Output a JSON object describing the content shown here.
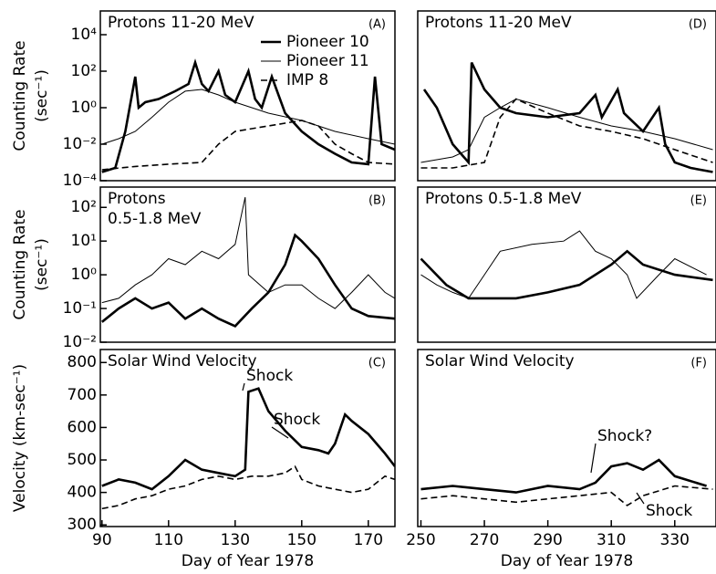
{
  "chart_data": [
    {
      "type": "line",
      "panel": "(A)",
      "title": "Protons 11-20 MeV",
      "log_y": true,
      "legend": "upper center",
      "ylabel": [
        "Counting Rate",
        "(sec⁻¹)"
      ],
      "xlim": [
        89.5,
        178
      ],
      "ylim": [
        0.0001,
        200000
      ],
      "yticks": [
        {
          "value": 0.0001,
          "label": "10⁻⁴"
        },
        {
          "value": 0.01,
          "label": "10⁻²"
        },
        {
          "value": 1,
          "label": "10⁰"
        },
        {
          "value": 100,
          "label": "10²"
        },
        {
          "value": 10000,
          "label": "10⁴"
        }
      ],
      "series": [
        {
          "name": "Pioneer 10",
          "color": "#000000",
          "x": [
            90,
            94,
            97,
            100,
            101,
            103,
            107,
            112,
            116,
            118,
            120,
            122,
            125,
            127,
            130,
            134,
            136,
            138,
            141,
            145,
            150,
            155,
            160,
            165,
            170,
            172,
            174,
            178
          ],
          "values": [
            0.0003,
            0.0005,
            0.05,
            50,
            1,
            2,
            3,
            8,
            20,
            300,
            20,
            8,
            100,
            5,
            2,
            100,
            3,
            1,
            50,
            0.5,
            0.05,
            0.01,
            0.003,
            0.001,
            0.0008,
            50,
            0.01,
            0.005
          ]
        },
        {
          "name": "Pioneer 11",
          "color": "#000000",
          "x": [
            90,
            95,
            100,
            105,
            110,
            115,
            120,
            125,
            130,
            135,
            140,
            150,
            160,
            170,
            178
          ],
          "values": [
            0.01,
            0.02,
            0.05,
            0.3,
            2,
            8,
            10,
            5,
            2,
            1,
            0.5,
            0.2,
            0.05,
            0.02,
            0.01
          ]
        },
        {
          "name": "IMP 8",
          "color": "#000000",
          "x": [
            90,
            100,
            110,
            120,
            125,
            130,
            140,
            150,
            155,
            160,
            165,
            170,
            178
          ],
          "values": [
            0.0004,
            0.0006,
            0.0008,
            0.001,
            0.01,
            0.05,
            0.1,
            0.2,
            0.1,
            0.01,
            0.003,
            0.001,
            0.0008
          ]
        }
      ]
    },
    {
      "type": "line",
      "panel": "(B)",
      "title": "Protons",
      "subtitle": "0.5-1.8 MeV",
      "log_y": true,
      "ylabel": [
        "Counting Rate",
        "(sec⁻¹)"
      ],
      "xlim": [
        89.5,
        178
      ],
      "ylim": [
        0.01,
        400
      ],
      "yticks": [
        {
          "value": 0.01,
          "label": "10⁻²"
        },
        {
          "value": 0.1,
          "label": "10⁻¹"
        },
        {
          "value": 1,
          "label": "10⁰"
        },
        {
          "value": 10,
          "label": "10¹"
        },
        {
          "value": 100,
          "label": "10²"
        }
      ],
      "series": [
        {
          "name": "Pioneer 10",
          "color": "#000000",
          "x": [
            90,
            95,
            100,
            105,
            110,
            115,
            120,
            125,
            130,
            135,
            140,
            145,
            148,
            150,
            155,
            160,
            165,
            170,
            178
          ],
          "values": [
            0.04,
            0.1,
            0.2,
            0.1,
            0.15,
            0.05,
            0.1,
            0.05,
            0.03,
            0.1,
            0.3,
            2,
            15,
            10,
            3,
            0.5,
            0.1,
            0.06,
            0.05
          ]
        },
        {
          "name": "Pioneer 11",
          "color": "#000000",
          "x": [
            90,
            95,
            100,
            105,
            110,
            115,
            120,
            125,
            130,
            133,
            134,
            140,
            145,
            150,
            155,
            160,
            165,
            170,
            175,
            178
          ],
          "values": [
            0.15,
            0.2,
            0.5,
            1,
            3,
            2,
            5,
            3,
            8,
            200,
            1,
            0.3,
            0.5,
            0.5,
            0.2,
            0.1,
            0.3,
            1,
            0.3,
            0.2
          ]
        }
      ]
    },
    {
      "type": "line",
      "panel": "(C)",
      "title": "Solar Wind Velocity",
      "log_y": false,
      "ylabel": [
        "Velocity (km-sec⁻¹)"
      ],
      "xlabel": "Day of Year 1978",
      "xlim": [
        89.5,
        178
      ],
      "ylim": [
        295,
        840
      ],
      "xticks": [
        90,
        110,
        130,
        150,
        170
      ],
      "yticks": [
        300,
        400,
        500,
        600,
        700,
        800
      ],
      "annotations": [
        "Shock",
        "Shock"
      ],
      "series": [
        {
          "name": "Pioneer 10",
          "color": "#000000",
          "x": [
            90,
            95,
            100,
            105,
            110,
            115,
            120,
            125,
            130,
            133,
            134,
            137,
            140,
            145,
            148,
            150,
            155,
            158,
            160,
            163,
            165,
            170,
            175,
            178
          ],
          "values": [
            420,
            440,
            430,
            410,
            450,
            500,
            470,
            460,
            450,
            470,
            710,
            720,
            650,
            590,
            560,
            540,
            530,
            520,
            550,
            640,
            620,
            580,
            520,
            480
          ]
        },
        {
          "name": "IMP 8",
          "color": "#000000",
          "x": [
            90,
            95,
            100,
            105,
            110,
            115,
            120,
            125,
            130,
            135,
            140,
            145,
            148,
            150,
            155,
            160,
            165,
            170,
            175,
            178
          ],
          "values": [
            350,
            360,
            380,
            390,
            410,
            420,
            440,
            450,
            440,
            450,
            450,
            460,
            480,
            440,
            420,
            410,
            400,
            410,
            450,
            440
          ]
        }
      ]
    },
    {
      "type": "line",
      "panel": "(D)",
      "title": "Protons 11-20 MeV",
      "log_y": true,
      "xlim": [
        249,
        343
      ],
      "ylim": [
        0.0001,
        200000
      ],
      "series": [
        {
          "name": "Pioneer 10",
          "color": "#000000",
          "x": [
            251,
            255,
            260,
            265,
            266,
            270,
            275,
            280,
            290,
            300,
            305,
            307,
            312,
            314,
            320,
            325,
            327,
            330,
            335,
            342
          ],
          "values": [
            10,
            1,
            0.01,
            0.001,
            300,
            10,
            1,
            0.5,
            0.3,
            0.5,
            5,
            0.3,
            10,
            0.5,
            0.05,
            1,
            0.01,
            0.001,
            0.0005,
            0.0003
          ]
        },
        {
          "name": "Pioneer 11",
          "color": "#000000",
          "x": [
            250,
            260,
            265,
            270,
            275,
            280,
            290,
            300,
            310,
            320,
            330,
            342
          ],
          "values": [
            0.001,
            0.002,
            0.005,
            0.3,
            1,
            3,
            1,
            0.3,
            0.1,
            0.05,
            0.02,
            0.005
          ]
        },
        {
          "name": "IMP 8",
          "color": "#000000",
          "x": [
            250,
            260,
            270,
            275,
            280,
            290,
            300,
            310,
            320,
            330,
            342
          ],
          "values": [
            0.0005,
            0.0005,
            0.001,
            0.3,
            3,
            0.5,
            0.1,
            0.05,
            0.02,
            0.005,
            0.001
          ]
        }
      ]
    },
    {
      "type": "line",
      "panel": "(E)",
      "title": "Protons 0.5-1.8 MeV",
      "log_y": true,
      "xlim": [
        249,
        343
      ],
      "ylim": [
        0.01,
        400
      ],
      "series": [
        {
          "name": "Pioneer 10",
          "color": "#000000",
          "x": [
            250,
            258,
            265,
            280,
            290,
            300,
            310,
            315,
            320,
            330,
            342
          ],
          "values": [
            3,
            0.5,
            0.2,
            0.2,
            0.3,
            0.5,
            2,
            5,
            2,
            1,
            0.7
          ]
        },
        {
          "name": "Pioneer 11",
          "color": "#000000",
          "x": [
            250,
            255,
            260,
            265,
            270,
            275,
            285,
            295,
            300,
            305,
            310,
            315,
            318,
            325,
            330,
            340
          ],
          "values": [
            1,
            0.5,
            0.3,
            0.2,
            1,
            5,
            8,
            10,
            20,
            5,
            3,
            1,
            0.2,
            1,
            3,
            1
          ]
        }
      ]
    },
    {
      "type": "line",
      "panel": "(F)",
      "title": "Solar Wind Velocity",
      "log_y": false,
      "xlabel": "Day of Year 1978",
      "xlim": [
        249,
        343
      ],
      "ylim": [
        295,
        840
      ],
      "xticks": [
        250,
        270,
        290,
        310,
        330
      ],
      "annotations": [
        "Shock?",
        "Shock"
      ],
      "series": [
        {
          "name": "Pioneer 10",
          "color": "#000000",
          "x": [
            250,
            260,
            270,
            280,
            290,
            300,
            305,
            310,
            315,
            320,
            325,
            330,
            340
          ],
          "values": [
            410,
            420,
            410,
            400,
            420,
            410,
            430,
            480,
            490,
            470,
            500,
            450,
            420
          ]
        },
        {
          "name": "IMP 8",
          "color": "#000000",
          "x": [
            250,
            260,
            270,
            280,
            290,
            300,
            310,
            315,
            320,
            330,
            342
          ],
          "values": [
            380,
            390,
            380,
            370,
            380,
            390,
            400,
            360,
            390,
            420,
            410
          ]
        }
      ]
    }
  ]
}
